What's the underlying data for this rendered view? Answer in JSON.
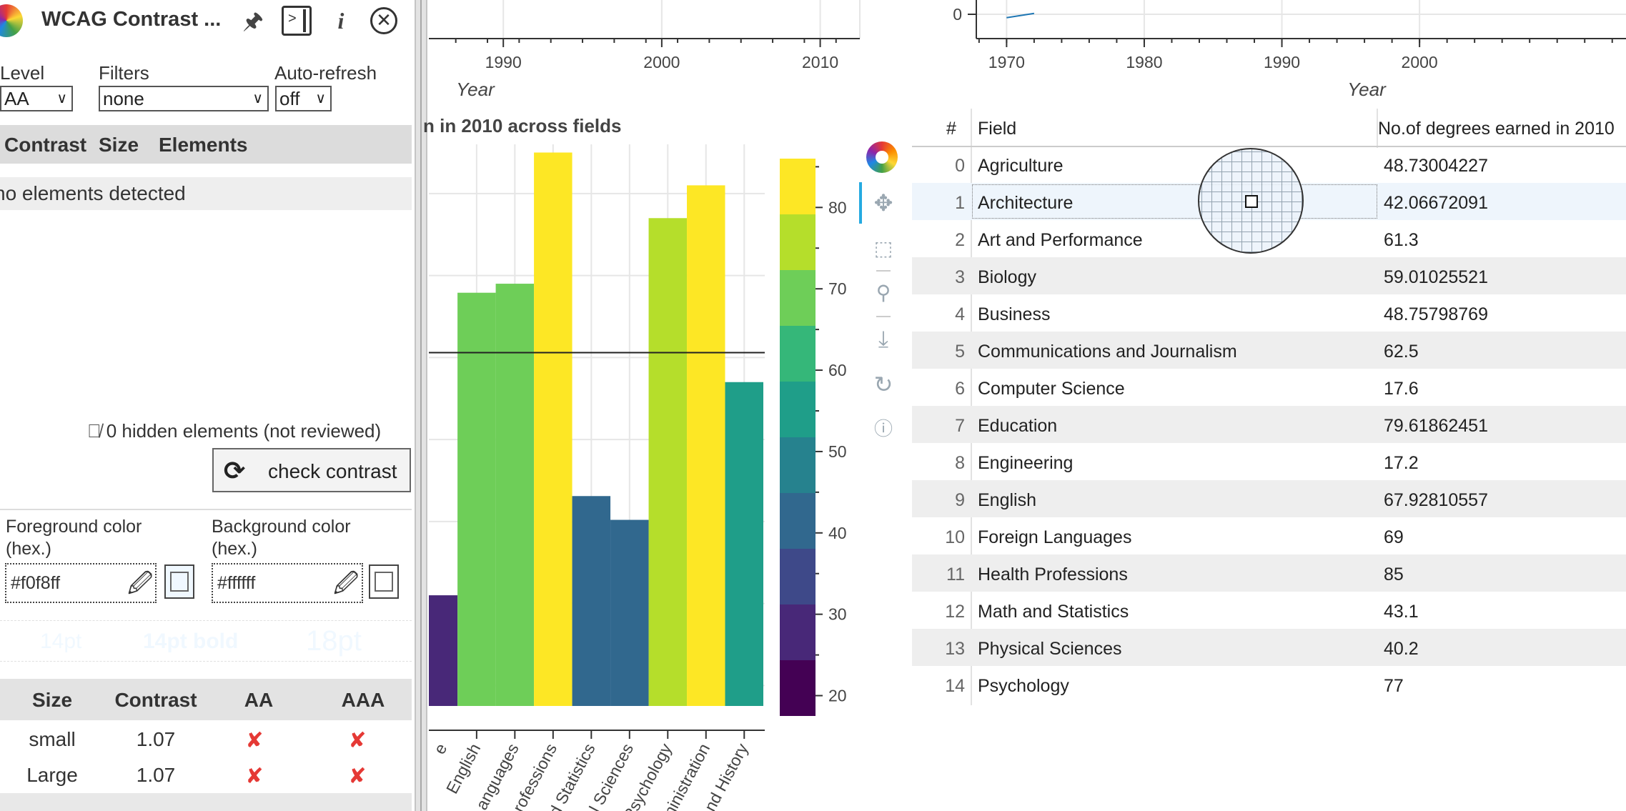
{
  "panel": {
    "title": "WCAG Contrast ...",
    "level": {
      "label": "Level",
      "value": "AA"
    },
    "filters": {
      "label": "Filters",
      "value": "none"
    },
    "autorefresh": {
      "label": "Auto-refresh",
      "value": "off"
    },
    "list_headers": {
      "contrast": "Contrast",
      "size": "Size",
      "elements": "Elements"
    },
    "no_elements": "no elements detected",
    "hidden_elements": "0 hidden elements (not reviewed)",
    "check_button": "check contrast",
    "foreground": {
      "label": "Foreground color (hex.)",
      "value": "#f0f8ff"
    },
    "background": {
      "label": "Background color (hex.)",
      "value": "#ffffff"
    },
    "preview": {
      "small": "14pt",
      "bold": "14pt bold",
      "large": "18pt"
    },
    "results_headers": {
      "size": "Size",
      "contrast": "Contrast",
      "aa": "AA",
      "aaa": "AAA"
    },
    "results": [
      {
        "size": "small",
        "contrast": "1.07",
        "aa": "✘",
        "aaa": "✘"
      },
      {
        "size": "Large",
        "contrast": "1.07",
        "aa": "✘",
        "aaa": "✘"
      }
    ],
    "colors": {
      "fail": "#e53935"
    }
  },
  "chart_data": [
    {
      "type": "line",
      "xlabel": "Year",
      "x_ticks": [
        1990,
        2000,
        2010
      ],
      "xlim": [
        1985.3,
        2012.5
      ]
    },
    {
      "type": "line",
      "xlabel": "Year",
      "x_ticks": [
        1970,
        1980,
        1990,
        2000
      ],
      "xlim": [
        1967.8,
        2015
      ],
      "y_ticks": [
        0
      ],
      "ylim": [
        -1,
        1
      ],
      "series": [
        {
          "x": [
            1970,
            1972
          ],
          "y": [
            -0.4,
            0.1
          ]
        }
      ]
    },
    {
      "type": "bar",
      "title": "n in 2010 across fields",
      "categories": [
        "English",
        "anguages",
        "rofessions",
        "d Statistics",
        "l Sciences",
        "Psychology",
        "ninistration",
        "nd History"
      ],
      "first_category_label": "e",
      "first_bar_value": 31,
      "values": [
        67.9,
        69,
        85,
        43.1,
        40.2,
        77,
        81,
        57
      ],
      "ylim": [
        17.5,
        86
      ],
      "hline": 60.6,
      "colorbar": {
        "ticks": [
          20,
          30,
          40,
          50,
          60,
          70,
          80
        ],
        "range": [
          17.5,
          86
        ]
      }
    }
  ],
  "table": {
    "headers": {
      "index": "#",
      "field": "Field",
      "value": "No.of degrees earned in 2010"
    },
    "rows": [
      {
        "idx": "0",
        "field": "Agriculture",
        "value": "48.73004227"
      },
      {
        "idx": "1",
        "field": "Architecture",
        "value": "42.06672091"
      },
      {
        "idx": "2",
        "field": "Art and Performance",
        "value": "61.3"
      },
      {
        "idx": "3",
        "field": "Biology",
        "value": "59.01025521"
      },
      {
        "idx": "4",
        "field": "Business",
        "value": "48.75798769"
      },
      {
        "idx": "5",
        "field": "Communications and Journalism",
        "value": "62.5"
      },
      {
        "idx": "6",
        "field": "Computer Science",
        "value": "17.6"
      },
      {
        "idx": "7",
        "field": "Education",
        "value": "79.61862451"
      },
      {
        "idx": "8",
        "field": "Engineering",
        "value": "17.2"
      },
      {
        "idx": "9",
        "field": "English",
        "value": "67.92810557"
      },
      {
        "idx": "10",
        "field": "Foreign Languages",
        "value": "69"
      },
      {
        "idx": "11",
        "field": "Health Professions",
        "value": "85"
      },
      {
        "idx": "12",
        "field": "Math and Statistics",
        "value": "43.1"
      },
      {
        "idx": "13",
        "field": "Physical Sciences",
        "value": "40.2"
      },
      {
        "idx": "14",
        "field": "Psychology",
        "value": "77"
      }
    ],
    "selected_row": 1
  },
  "toolbar": [
    "bokeh-logo",
    "pan-icon",
    "box-zoom-icon",
    "wheel-zoom-icon",
    "save-icon",
    "reset-icon",
    "help-icon"
  ],
  "viridis": [
    "#440154",
    "#482878",
    "#3e4989",
    "#31688e",
    "#26828e",
    "#1f9e89",
    "#35b779",
    "#6ece58",
    "#b5de2b",
    "#fde725"
  ]
}
